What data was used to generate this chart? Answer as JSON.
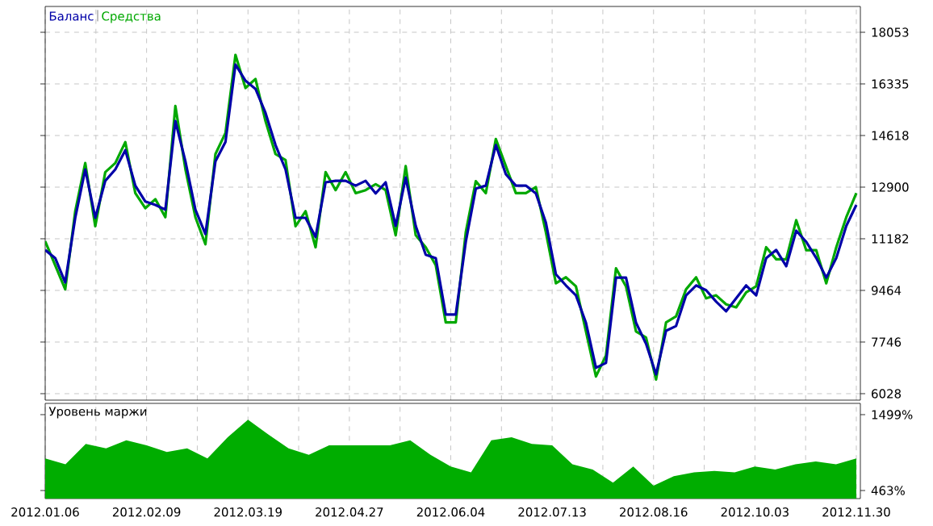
{
  "chart_data": [
    {
      "type": "line",
      "legend": "top left",
      "grid": true,
      "tick_labels": "y",
      "categories": [
        null,
        null,
        null,
        null,
        null,
        null,
        null,
        null,
        null,
        null,
        null,
        null,
        null,
        null,
        null,
        null,
        null,
        null,
        null,
        null,
        null,
        null,
        null,
        null,
        null,
        null,
        null,
        null,
        null,
        null,
        null,
        null,
        null,
        null,
        null,
        null,
        null,
        null,
        null,
        null,
        null,
        null,
        null,
        null,
        null,
        null,
        null,
        null,
        null,
        null,
        null,
        null,
        null,
        null,
        null,
        null,
        null,
        null,
        null,
        null,
        null,
        null,
        null,
        null,
        null,
        null,
        null,
        null,
        null,
        null,
        null,
        null,
        null,
        null,
        null,
        null,
        null,
        null,
        null,
        null,
        null,
        null
      ],
      "ylim": [
        5813,
        18912
      ],
      "yticks": [
        6028,
        7746,
        9464,
        11182,
        12900,
        14618,
        16335,
        18053
      ],
      "series": [
        {
          "name": "Баланс",
          "color": "#0000a8",
          "values": [
            10810,
            10540,
            9730,
            11880,
            13490,
            11880,
            13110,
            13490,
            14130,
            12950,
            12420,
            12310,
            12150,
            15100,
            13760,
            12150,
            11340,
            13760,
            14400,
            16980,
            16440,
            16170,
            15370,
            14300,
            13490,
            11880,
            11880,
            11240,
            13060,
            13110,
            13110,
            12950,
            13110,
            12690,
            13060,
            11610,
            13220,
            11610,
            10650,
            10540,
            8660,
            8660,
            11080,
            12850,
            12950,
            14300,
            13330,
            12950,
            12950,
            12690,
            11720,
            10000,
            9630,
            9300,
            8390,
            6890,
            7050,
            9890,
            9890,
            8390,
            7690,
            6670,
            8120,
            8280,
            9300,
            9630,
            9470,
            9090,
            8770,
            9200,
            9630,
            9300,
            10540,
            10810,
            10270,
            11450,
            11080,
            10540,
            9890,
            10540,
            11610,
            12310
          ]
        },
        {
          "name": "Средства",
          "color": "#00a800",
          "values": [
            11100,
            10300,
            9500,
            12100,
            13700,
            11600,
            13400,
            13700,
            14400,
            12700,
            12200,
            12500,
            11900,
            15600,
            13500,
            11900,
            11000,
            14000,
            14700,
            17300,
            16200,
            16500,
            15100,
            14000,
            13800,
            11600,
            12100,
            10900,
            13400,
            12800,
            13400,
            12700,
            12800,
            13000,
            12800,
            11300,
            13600,
            11300,
            10900,
            10300,
            8400,
            8400,
            11400,
            13100,
            12700,
            14500,
            13600,
            12700,
            12700,
            12900,
            11400,
            9700,
            9900,
            9600,
            8100,
            6600,
            7300,
            10200,
            9600,
            8100,
            7900,
            6500,
            8400,
            8600,
            9500,
            9900,
            9200,
            9300,
            9000,
            8900,
            9400,
            9600,
            10900,
            10500,
            10500,
            11800,
            10800,
            10800,
            9700,
            10900,
            11900,
            12700
          ]
        }
      ]
    },
    {
      "type": "area",
      "title": "Уровень маржи",
      "grid": "x",
      "categories": [
        "2012.01.06",
        null,
        null,
        null,
        null,
        "2012.02.09",
        null,
        null,
        null,
        null,
        "2012.03.19",
        null,
        null,
        null,
        null,
        "2012.04.27",
        null,
        null,
        null,
        null,
        "2012.06.04",
        null,
        null,
        null,
        null,
        "2012.07.13",
        null,
        null,
        null,
        null,
        "2012.08.16",
        null,
        null,
        null,
        null,
        "2012.10.03",
        null,
        null,
        null,
        null,
        "2012.11.30"
      ],
      "ylim": [
        353,
        1653
      ],
      "yticks": [
        {
          "value": 463,
          "label": "463%"
        },
        {
          "value": 1499,
          "label": "1499%"
        }
      ],
      "series": [
        {
          "color": "#00ad00",
          "values": [
            900,
            820,
            1100,
            1040,
            1150,
            1080,
            990,
            1040,
            900,
            1190,
            1430,
            1230,
            1040,
            950,
            1080,
            1080,
            1080,
            1080,
            1150,
            950,
            790,
            710,
            1150,
            1190,
            1100,
            1080,
            820,
            750,
            570,
            790,
            530,
            660,
            710,
            730,
            710,
            790,
            750,
            820,
            860,
            820,
            900
          ]
        }
      ]
    }
  ]
}
